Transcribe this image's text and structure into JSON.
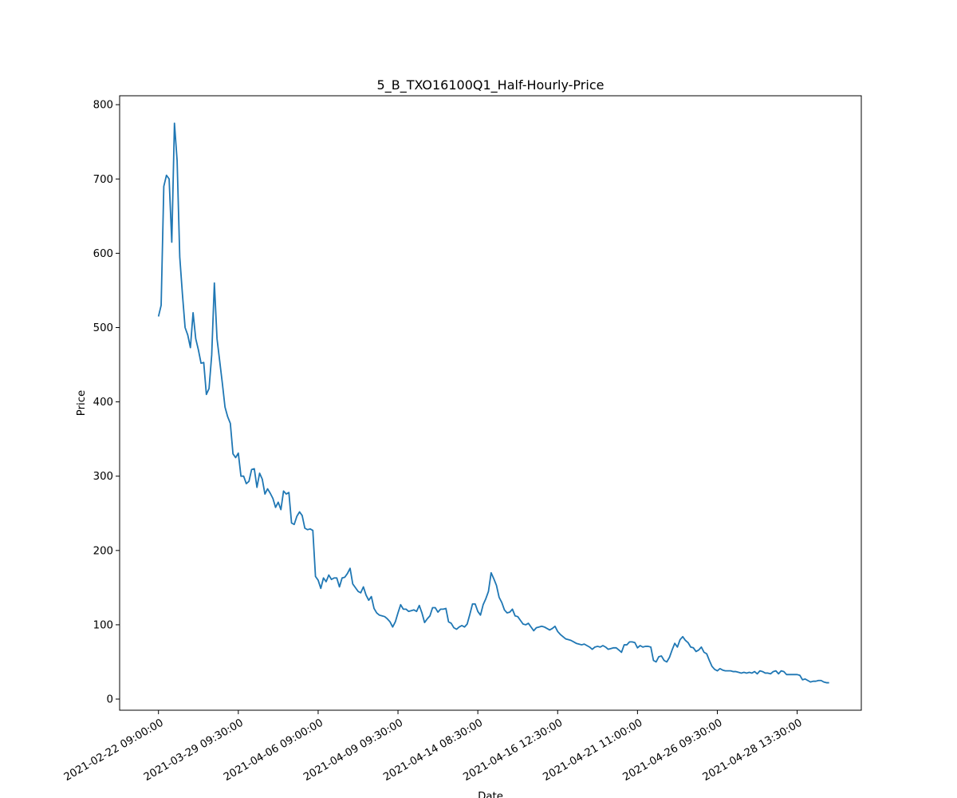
{
  "chart_data": {
    "type": "line",
    "title": "5_B_TXO16100Q1_Half-Hourly-Price",
    "xlabel": "Date",
    "ylabel": "Price",
    "ylim": [
      -15,
      812
    ],
    "yticks": [
      0,
      100,
      200,
      300,
      400,
      500,
      600,
      700,
      800
    ],
    "xticks": [
      {
        "index": 0,
        "label": "2021-02-22 09:00:00"
      },
      {
        "index": 30,
        "label": "2021-03-29 09:30:00"
      },
      {
        "index": 60,
        "label": "2021-04-06 09:00:00"
      },
      {
        "index": 90,
        "label": "2021-04-09 09:30:00"
      },
      {
        "index": 120,
        "label": "2021-04-14 08:30:00"
      },
      {
        "index": 150,
        "label": "2021-04-16 12:30:00"
      },
      {
        "index": 180,
        "label": "2021-04-21 11:00:00"
      },
      {
        "index": 210,
        "label": "2021-04-26 09:30:00"
      },
      {
        "index": 240,
        "label": "2021-04-28 13:30:00"
      }
    ],
    "grid": false,
    "line_color": "#1f77b4",
    "series": [
      {
        "values": [
          515,
          530,
          690,
          705,
          700,
          615,
          775,
          725,
          595,
          545,
          500,
          490,
          473,
          520,
          485,
          470,
          452,
          453,
          410,
          418,
          463,
          560,
          485,
          455,
          425,
          393,
          380,
          371,
          330,
          325,
          331,
          300,
          300,
          290,
          293,
          309,
          310,
          285,
          304,
          296,
          276,
          283,
          277,
          270,
          258,
          265,
          255,
          280,
          276,
          278,
          237,
          235,
          246,
          252,
          247,
          230,
          228,
          229,
          227,
          165,
          160,
          149,
          163,
          158,
          167,
          161,
          163,
          163,
          151,
          163,
          164,
          169,
          176,
          155,
          150,
          145,
          143,
          151,
          140,
          133,
          138,
          122,
          116,
          113,
          112,
          111,
          108,
          104,
          97,
          104,
          116,
          127,
          121,
          121,
          118,
          119,
          120,
          118,
          126,
          116,
          103,
          108,
          112,
          123,
          123,
          117,
          121,
          121,
          122,
          104,
          102,
          96,
          94,
          97,
          99,
          97,
          101,
          114,
          128,
          128,
          118,
          113,
          127,
          135,
          145,
          170,
          162,
          153,
          137,
          130,
          120,
          116,
          117,
          121,
          112,
          111,
          106,
          101,
          100,
          102,
          97,
          92,
          96,
          97,
          98,
          97,
          95,
          93,
          95,
          98,
          91,
          87,
          84,
          81,
          80,
          79,
          77,
          75,
          74,
          73,
          74,
          72,
          70,
          67,
          70,
          71,
          70,
          72,
          70,
          67,
          68,
          69,
          69,
          66,
          63,
          73,
          73,
          77,
          77,
          76,
          69,
          72,
          70,
          71,
          71,
          70,
          52,
          50,
          57,
          58,
          52,
          50,
          56,
          66,
          75,
          70,
          80,
          84,
          79,
          76,
          70,
          69,
          64,
          66,
          70,
          63,
          61,
          52,
          44,
          40,
          38,
          41,
          39,
          38,
          38,
          38,
          37,
          37,
          36,
          35,
          36,
          35,
          36,
          35,
          37,
          34,
          38,
          37,
          35,
          35,
          34,
          37,
          38,
          34,
          38,
          37,
          33,
          33,
          33,
          33,
          33,
          32,
          26,
          27,
          25,
          23,
          24,
          24,
          25,
          25,
          23,
          22,
          22
        ]
      }
    ]
  }
}
